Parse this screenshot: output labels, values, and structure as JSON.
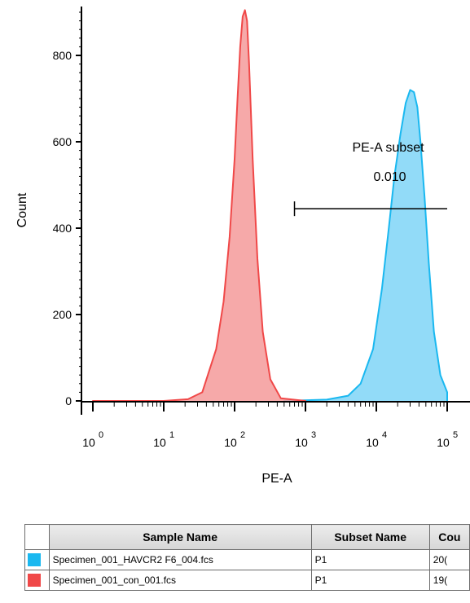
{
  "chart_data": {
    "type": "area",
    "xlabel": "PE-A",
    "ylabel": "Count",
    "x_scale": "log",
    "xlim": [
      1,
      100000
    ],
    "ylim": [
      0,
      900
    ],
    "y_ticks": [
      0,
      200,
      400,
      600,
      800
    ],
    "x_ticks": [
      {
        "base": "10",
        "exp": "0"
      },
      {
        "base": "10",
        "exp": "1"
      },
      {
        "base": "10",
        "exp": "2"
      },
      {
        "base": "10",
        "exp": "3"
      },
      {
        "base": "10",
        "exp": "4"
      },
      {
        "base": "10",
        "exp": "5"
      }
    ],
    "series": [
      {
        "name": "Specimen_001_con_001.fcs",
        "color": "#f04848",
        "fill": "#f59a9a",
        "x": [
          1,
          10,
          22,
          35,
          55,
          70,
          85,
          100,
          110,
          120,
          130,
          140,
          150,
          160,
          180,
          210,
          250,
          320,
          450,
          1000
        ],
        "y": [
          0,
          0,
          4,
          20,
          120,
          230,
          380,
          560,
          700,
          820,
          890,
          905,
          880,
          780,
          560,
          330,
          160,
          50,
          6,
          0
        ]
      },
      {
        "name": "Specimen_001_HAVCR2 F6_004.fcs",
        "color": "#1ab8f0",
        "fill": "#7fd5f7",
        "x": [
          500,
          2000,
          4000,
          6000,
          9000,
          12000,
          15000,
          18000,
          22000,
          26000,
          30000,
          34000,
          38000,
          42000,
          48000,
          55000,
          65000,
          80000,
          100000
        ],
        "y": [
          0,
          3,
          12,
          40,
          120,
          260,
          400,
          520,
          620,
          690,
          720,
          715,
          680,
          600,
          470,
          320,
          160,
          60,
          20
        ]
      }
    ],
    "gates": [
      {
        "name": "PE-A subset",
        "value": "0.010",
        "x_start": 700,
        "x_end": 100000,
        "y": 445
      }
    ]
  },
  "table": {
    "headers": [
      "Sample Name",
      "Subset Name",
      "Cou"
    ],
    "rows": [
      {
        "swatch": "#1ab8f0",
        "sample": "Specimen_001_HAVCR2 F6_004.fcs",
        "subset": "P1",
        "count": "20("
      },
      {
        "swatch": "#f04848",
        "sample": "Specimen_001_con_001.fcs",
        "subset": "P1",
        "count": "19("
      }
    ]
  }
}
